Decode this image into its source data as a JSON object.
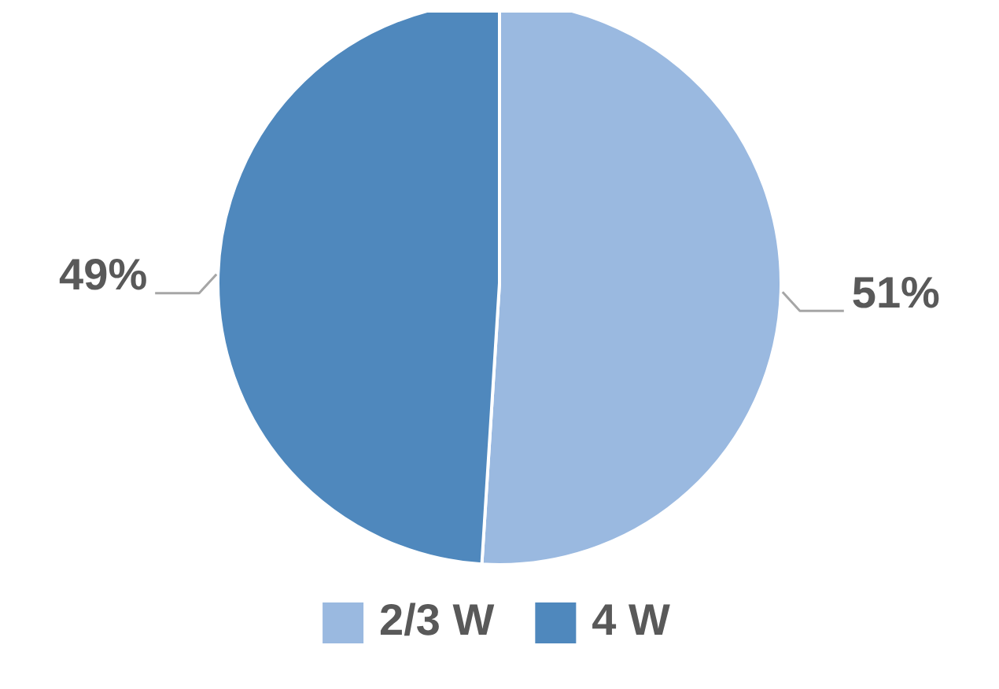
{
  "chart_data": {
    "type": "pie",
    "categories": [
      "2/3 W",
      "4 W"
    ],
    "values": [
      51,
      49
    ],
    "value_labels": [
      "51%",
      "49%"
    ],
    "colors": [
      "#9ab9e0",
      "#4f88bd"
    ],
    "legend": "bottom"
  }
}
